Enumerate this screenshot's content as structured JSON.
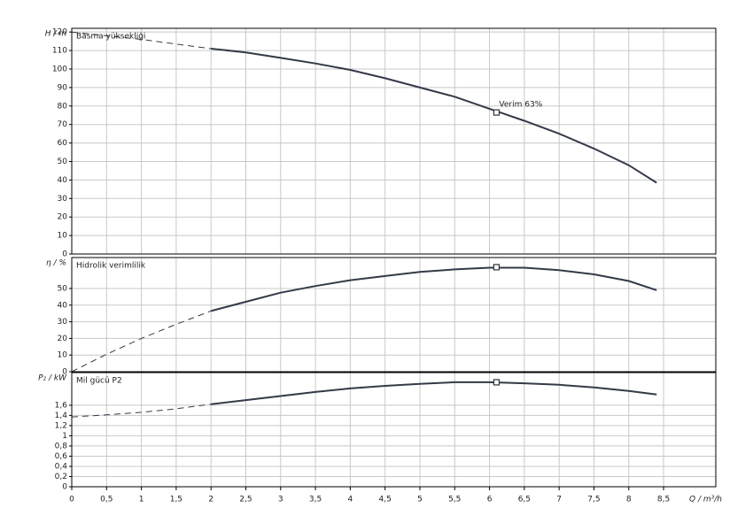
{
  "chart_data": [
    {
      "type": "line",
      "axis_label": "H / m",
      "label": "Basma yüksekliği",
      "x": [
        0,
        0.5,
        1,
        1.5,
        2,
        2.5,
        3,
        3.5,
        4,
        4.5,
        5,
        5.5,
        6,
        6.5,
        7,
        7.5,
        8,
        8.4
      ],
      "series": [
        {
          "style": "dashed",
          "color": "#333a48",
          "values": [
            120,
            118,
            116,
            113.5,
            111,
            null,
            null,
            null,
            null,
            null,
            null,
            null,
            null,
            null,
            null,
            null,
            null,
            null
          ]
        },
        {
          "style": "solid",
          "color": "#333a48",
          "values": [
            null,
            null,
            null,
            null,
            111,
            109,
            106,
            103,
            99.5,
            95,
            90,
            85,
            78.5,
            72,
            65,
            57,
            48,
            38.5
          ]
        }
      ],
      "marker": {
        "x": 6.1,
        "y": 76.5
      },
      "annotation": "Verim  63%",
      "ylim": [
        0,
        122
      ],
      "yticks": [
        0,
        10,
        20,
        30,
        40,
        50,
        60,
        70,
        80,
        90,
        100,
        110,
        120
      ]
    },
    {
      "type": "line",
      "axis_label": "η / %",
      "label": "Hidrolik verimlilik",
      "x": [
        0,
        0.5,
        1,
        1.5,
        2,
        2.5,
        3,
        3.5,
        4,
        4.5,
        5,
        5.5,
        6,
        6.5,
        7,
        7.5,
        8,
        8.4
      ],
      "series": [
        {
          "style": "dashed",
          "color": "#333a48",
          "values": [
            0,
            10.5,
            20,
            28.5,
            36.5,
            null,
            null,
            null,
            null,
            null,
            null,
            null,
            null,
            null,
            null,
            null,
            null,
            null
          ]
        },
        {
          "style": "solid",
          "color": "#333a48",
          "values": [
            null,
            null,
            null,
            null,
            36.5,
            42,
            47.5,
            51.5,
            55,
            57.5,
            60,
            61.5,
            62.5,
            62.5,
            61,
            58.5,
            54.5,
            49
          ]
        }
      ],
      "marker": {
        "x": 6.1,
        "y": 62.8
      },
      "ylim": [
        0,
        68.6
      ],
      "yticks": [
        0,
        10,
        20,
        30,
        40,
        50
      ]
    },
    {
      "type": "line",
      "axis_label": "P₂ / kW",
      "label": "Mil gücü P2",
      "x": [
        0,
        0.5,
        1,
        1.5,
        2,
        2.5,
        3,
        3.5,
        4,
        4.5,
        5,
        5.5,
        6,
        6.5,
        7,
        7.5,
        8,
        8.4
      ],
      "series": [
        {
          "style": "dashed",
          "color": "#333a48",
          "values": [
            1.37,
            1.41,
            1.46,
            1.53,
            1.62,
            null,
            null,
            null,
            null,
            null,
            null,
            null,
            null,
            null,
            null,
            null,
            null,
            null
          ]
        },
        {
          "style": "solid",
          "color": "#333a48",
          "values": [
            null,
            null,
            null,
            null,
            1.62,
            1.7,
            1.78,
            1.86,
            1.93,
            1.98,
            2.02,
            2.05,
            2.05,
            2.03,
            2.0,
            1.95,
            1.88,
            1.81
          ]
        }
      ],
      "marker": {
        "x": 6.1,
        "y": 2.05
      },
      "ylim": [
        0,
        2.24
      ],
      "yticks": [
        0,
        {
          "value": 0.2,
          "label": "0,2"
        },
        {
          "value": 0.4,
          "label": "0,4"
        },
        {
          "value": 0.6,
          "label": "0,6"
        },
        {
          "value": 0.8,
          "label": "0,8"
        },
        1,
        {
          "value": 1.2,
          "label": "1,2"
        },
        {
          "value": 1.4,
          "label": "1,4"
        },
        {
          "value": 1.6,
          "label": "1,6"
        }
      ],
      "xlabel": "Q / m³/h",
      "xlim": [
        0,
        9.25
      ],
      "xticks": [
        0,
        {
          "value": 0.5,
          "label": "0,5"
        },
        1,
        {
          "value": 1.5,
          "label": "1,5"
        },
        2,
        {
          "value": 2.5,
          "label": "2,5"
        },
        3,
        {
          "value": 3.5,
          "label": "3,5"
        },
        4,
        {
          "value": 4.5,
          "label": "4,5"
        },
        5,
        {
          "value": 5.5,
          "label": "5,5"
        },
        6,
        {
          "value": 6.5,
          "label": "6,5"
        },
        7,
        {
          "value": 7.5,
          "label": "7,5"
        },
        8,
        {
          "value": 8.5,
          "label": "8,5"
        }
      ],
      "grid": true
    }
  ]
}
